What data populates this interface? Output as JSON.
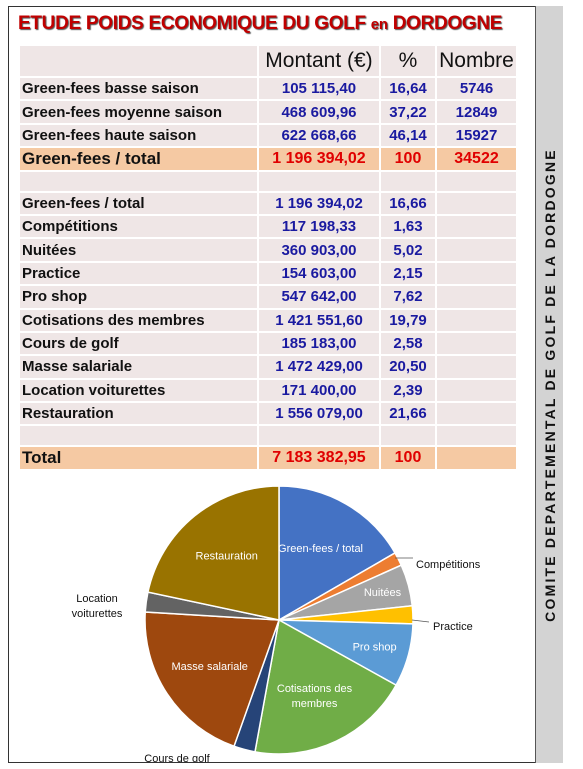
{
  "title": {
    "main": "ETUDE POIDS ECONOMIQUE DU GOLF",
    "en": "en",
    "dept": "DORDOGNE"
  },
  "sidebar_text": "COMITE DEPARTEMENTAL DE GOLF DE LA DORDOGNE",
  "header": {
    "montant": "Montant (€)",
    "pct": "%",
    "nombre": "Nombre"
  },
  "greenfees": [
    {
      "label": "Green-fees basse saison",
      "montant": "105 115,40",
      "pct": "16,64",
      "nombre": "5746"
    },
    {
      "label": "Green-fees moyenne saison",
      "montant": "468 609,96",
      "pct": "37,22",
      "nombre": "12849"
    },
    {
      "label": "Green-fees haute saison",
      "montant": "622 668,66",
      "pct": "46,14",
      "nombre": "15927"
    }
  ],
  "greenfees_total": {
    "label": "Green-fees / total",
    "montant": "1 196 394,02",
    "pct": "100",
    "nombre": "34522"
  },
  "breakdown": [
    {
      "label": "Green-fees / total",
      "montant": "1 196  394,02",
      "pct": "16,66"
    },
    {
      "label": "Compétitions",
      "montant": "117 198,33",
      "pct": "1,63"
    },
    {
      "label": "Nuitées",
      "montant": "360 903,00",
      "pct": "5,02"
    },
    {
      "label": "Practice",
      "montant": "154 603,00",
      "pct": "2,15"
    },
    {
      "label": "Pro shop",
      "montant": "547 642,00",
      "pct": "7,62"
    },
    {
      "label": "Cotisations des membres",
      "montant": "1 421 551,60",
      "pct": "19,79"
    },
    {
      "label": "Cours de golf",
      "montant": "185 183,00",
      "pct": "2,58"
    },
    {
      "label": "Masse salariale",
      "montant": "1 472 429,00",
      "pct": "20,50"
    },
    {
      "label": "Location voiturettes",
      "montant": "171 400,00",
      "pct": "2,39"
    },
    {
      "label": "Restauration",
      "montant": "1 556 079,00",
      "pct": "21,66"
    }
  ],
  "grand_total": {
    "label": "Total",
    "montant": "7 183 382,95",
    "pct": "100"
  },
  "colors": {
    "title": "#c00000",
    "values": "#1a1aa0",
    "totals": "#e00000",
    "total_row_bg": "#f5c9a3",
    "cell_bg": "#efe6e6"
  },
  "chart_data": {
    "type": "pie",
    "categories": [
      "Green-fees / total",
      "Compétitions",
      "Nuitées",
      "Practice",
      "Pro shop",
      "Cotisations des membres",
      "Cours de golf",
      "Masse salariale",
      "Location voiturettes",
      "Restauration"
    ],
    "values": [
      16.66,
      1.63,
      5.02,
      2.15,
      7.62,
      19.79,
      2.58,
      20.5,
      2.39,
      21.66
    ],
    "colors": [
      "#4472c4",
      "#ed7d31",
      "#a5a5a5",
      "#ffc000",
      "#5b9bd5",
      "#70ad47",
      "#264478",
      "#9e480e",
      "#636363",
      "#997300"
    ],
    "labels": [
      "Green-fees / total",
      "Compétitions",
      "Nuitées",
      "Practice",
      "Pro shop",
      "Cotisations des membres",
      "Cours de golf",
      "Masse salariale",
      "Location voiturettes",
      "Restauration"
    ]
  }
}
